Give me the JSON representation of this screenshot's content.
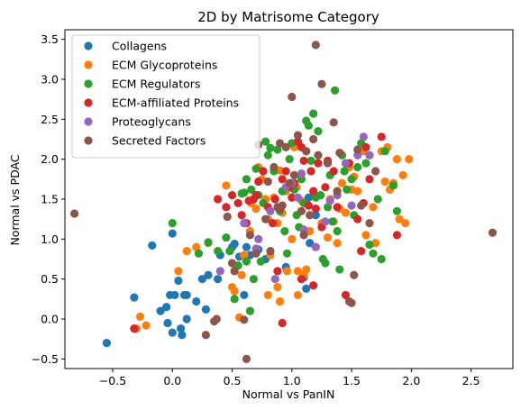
{
  "chart_data": {
    "type": "scatter",
    "title": "2D by Matrisome Category",
    "xlabel": "Normal vs PanIN",
    "ylabel": "Normal vs PDAC",
    "xlim": [
      -0.9,
      2.85
    ],
    "ylim": [
      -0.62,
      3.62
    ],
    "xticks": [
      -0.5,
      0.0,
      0.5,
      1.0,
      1.5,
      2.0,
      2.5
    ],
    "xtick_labels": [
      "−0.5",
      "0.0",
      "0.5",
      "1.0",
      "1.5",
      "2.0",
      "2.5"
    ],
    "yticks": [
      -0.5,
      0.0,
      0.5,
      1.0,
      1.5,
      2.0,
      2.5,
      3.0,
      3.5
    ],
    "ytick_labels": [
      "−0.5",
      "0.0",
      "0.5",
      "1.0",
      "1.5",
      "2.0",
      "2.5",
      "3.0",
      "3.5"
    ],
    "grid": false,
    "legend_position": "top-left",
    "series": [
      {
        "name": "Collagens",
        "color": "#1f77b4",
        "points": [
          [
            -0.55,
            -0.3
          ],
          [
            -0.32,
            0.27
          ],
          [
            -0.17,
            0.92
          ],
          [
            -0.1,
            0.1
          ],
          [
            -0.05,
            0.15
          ],
          [
            -0.04,
            -0.05
          ],
          [
            -0.02,
            0.3
          ],
          [
            0.0,
            1.07
          ],
          [
            0.0,
            -0.17
          ],
          [
            0.02,
            0.3
          ],
          [
            0.05,
            0.48
          ],
          [
            0.07,
            -0.12
          ],
          [
            0.08,
            -0.2
          ],
          [
            0.1,
            0.3
          ],
          [
            0.12,
            0.3
          ],
          [
            0.12,
            0.0
          ],
          [
            0.2,
            0.22
          ],
          [
            0.25,
            0.5
          ],
          [
            0.28,
            0.12
          ],
          [
            0.3,
            0.55
          ],
          [
            0.38,
            0.5
          ],
          [
            0.4,
            0.8
          ],
          [
            0.5,
            0.9
          ],
          [
            0.52,
            0.94
          ],
          [
            0.56,
            0.78
          ],
          [
            0.6,
            0.3
          ],
          [
            0.62,
            0.9
          ],
          [
            0.65,
            0.8
          ],
          [
            0.72,
            0.87
          ],
          [
            0.78,
            0.75
          ],
          [
            0.95,
            0.65
          ],
          [
            1.12,
            0.38
          ],
          [
            1.1,
            0.52
          ],
          [
            1.15,
            0.95
          ],
          [
            1.2,
            1.3
          ],
          [
            1.14,
            1.52
          ]
        ]
      },
      {
        "name": "ECM Glycoproteins",
        "color": "#ff7f0e",
        "points": [
          [
            -0.3,
            -0.12
          ],
          [
            -0.27,
            0.03
          ],
          [
            -0.22,
            -0.08
          ],
          [
            0.05,
            0.6
          ],
          [
            0.12,
            0.85
          ],
          [
            0.2,
            0.9
          ],
          [
            0.3,
            0.95
          ],
          [
            0.45,
            1.67
          ],
          [
            0.5,
            0.4
          ],
          [
            0.52,
            0.35
          ],
          [
            0.56,
            0.02
          ],
          [
            0.58,
            0.55
          ],
          [
            0.6,
            0.8
          ],
          [
            0.65,
            1.1
          ],
          [
            0.66,
            1.45
          ],
          [
            0.7,
            1.38
          ],
          [
            0.72,
            1.9
          ],
          [
            0.75,
            1.75
          ],
          [
            0.78,
            1.5
          ],
          [
            0.8,
            1.25
          ],
          [
            0.82,
            0.8
          ],
          [
            0.85,
            1.52
          ],
          [
            0.88,
            1.2
          ],
          [
            0.9,
            1.86
          ],
          [
            0.92,
            1.33
          ],
          [
            0.95,
            1.6
          ],
          [
            0.96,
            0.6
          ],
          [
            1.0,
            1.0
          ],
          [
            1.02,
            2.15
          ],
          [
            1.04,
            1.65
          ],
          [
            1.05,
            0.6
          ],
          [
            1.08,
            1.48
          ],
          [
            1.1,
            0.55
          ],
          [
            1.12,
            0.62
          ],
          [
            1.15,
            1.1
          ],
          [
            1.2,
            0.9
          ],
          [
            1.25,
            1.2
          ],
          [
            1.3,
            1.02
          ],
          [
            1.32,
            1.5
          ],
          [
            1.35,
            1.22
          ],
          [
            1.38,
            0.95
          ],
          [
            1.4,
            1.38
          ],
          [
            1.42,
            1.7
          ],
          [
            1.45,
            1.33
          ],
          [
            1.48,
            1.9
          ],
          [
            1.5,
            1.62
          ],
          [
            1.52,
            1.78
          ],
          [
            1.55,
            1.6
          ],
          [
            1.6,
            2.1
          ],
          [
            1.62,
            1.05
          ],
          [
            1.65,
            2.05
          ],
          [
            1.7,
            0.95
          ],
          [
            1.75,
            2.1
          ],
          [
            1.78,
            1.72
          ],
          [
            1.82,
            1.62
          ],
          [
            1.85,
            1.7
          ],
          [
            1.88,
            2.0
          ],
          [
            1.9,
            1.25
          ],
          [
            1.93,
            1.8
          ],
          [
            1.95,
            1.2
          ],
          [
            1.98,
            2.0
          ],
          [
            1.8,
            2.15
          ],
          [
            1.68,
            1.4
          ],
          [
            0.88,
            0.4
          ],
          [
            0.9,
            0.22
          ],
          [
            1.05,
            0.3
          ],
          [
            0.8,
            0.3
          ]
        ]
      },
      {
        "name": "ECM Regulators",
        "color": "#2ca02c",
        "points": [
          [
            0.0,
            1.2
          ],
          [
            0.22,
            0.82
          ],
          [
            0.3,
            0.96
          ],
          [
            0.38,
            0.85
          ],
          [
            0.45,
            1.02
          ],
          [
            0.48,
            0.85
          ],
          [
            0.52,
            0.25
          ],
          [
            0.55,
            0.67
          ],
          [
            0.58,
            1.57
          ],
          [
            0.6,
            1.58
          ],
          [
            0.62,
            1.75
          ],
          [
            0.65,
            0.1
          ],
          [
            0.66,
            1.62
          ],
          [
            0.7,
            1.88
          ],
          [
            0.72,
            1.55
          ],
          [
            0.74,
            0.72
          ],
          [
            0.76,
            1.45
          ],
          [
            0.78,
            2.22
          ],
          [
            0.8,
            2.05
          ],
          [
            0.82,
            2.14
          ],
          [
            0.85,
            1.85
          ],
          [
            0.88,
            2.12
          ],
          [
            0.9,
            1.35
          ],
          [
            0.92,
            1.6
          ],
          [
            0.94,
            1.1
          ],
          [
            0.96,
            0.82
          ],
          [
            0.98,
            2.0
          ],
          [
            1.0,
            2.2
          ],
          [
            1.02,
            1.62
          ],
          [
            1.04,
            1.3
          ],
          [
            1.06,
            1.15
          ],
          [
            1.08,
            1.75
          ],
          [
            1.1,
            1.45
          ],
          [
            1.12,
            2.48
          ],
          [
            1.14,
            2.42
          ],
          [
            1.16,
            1.98
          ],
          [
            1.18,
            2.57
          ],
          [
            1.2,
            1.52
          ],
          [
            1.22,
            2.35
          ],
          [
            1.24,
            1.55
          ],
          [
            1.26,
            0.75
          ],
          [
            1.28,
            0.7
          ],
          [
            1.3,
            1.4
          ],
          [
            1.32,
            1.8
          ],
          [
            1.34,
            1.22
          ],
          [
            1.36,
            2.86
          ],
          [
            1.38,
            1.1
          ],
          [
            1.4,
            0.62
          ],
          [
            1.42,
            2.05
          ],
          [
            1.44,
            1.85
          ],
          [
            1.46,
            1.62
          ],
          [
            1.5,
            1.75
          ],
          [
            1.52,
            1.3
          ],
          [
            1.55,
            1.9
          ],
          [
            1.58,
            2.2
          ],
          [
            1.62,
            1.95
          ],
          [
            1.65,
            0.93
          ],
          [
            1.68,
            0.82
          ],
          [
            1.72,
            1.5
          ],
          [
            1.75,
            0.75
          ],
          [
            1.78,
            2.1
          ],
          [
            1.85,
            1.67
          ],
          [
            1.88,
            1.35
          ],
          [
            0.68,
            0.5
          ],
          [
            0.62,
            0.72
          ]
        ]
      },
      {
        "name": "ECM-affiliated Proteins",
        "color": "#d62728",
        "points": [
          [
            -0.32,
            -0.12
          ],
          [
            0.38,
            1.5
          ],
          [
            0.45,
            1.4
          ],
          [
            0.5,
            1.55
          ],
          [
            0.55,
            1.45
          ],
          [
            0.58,
            1.3
          ],
          [
            0.62,
            1.2
          ],
          [
            0.64,
            1.48
          ],
          [
            0.68,
            1.5
          ],
          [
            0.7,
            1.55
          ],
          [
            0.72,
            1.72
          ],
          [
            0.76,
            1.85
          ],
          [
            0.8,
            1.4
          ],
          [
            0.84,
            1.2
          ],
          [
            0.86,
            1.5
          ],
          [
            0.9,
            1.38
          ],
          [
            0.92,
            1.75
          ],
          [
            0.95,
            1.85
          ],
          [
            0.98,
            1.65
          ],
          [
            1.0,
            1.52
          ],
          [
            1.02,
            1.7
          ],
          [
            1.05,
            2.22
          ],
          [
            1.08,
            2.15
          ],
          [
            1.1,
            1.98
          ],
          [
            1.12,
            2.1
          ],
          [
            1.14,
            1.42
          ],
          [
            1.16,
            1.85
          ],
          [
            1.18,
            1.6
          ],
          [
            1.2,
            1.38
          ],
          [
            1.22,
            1.95
          ],
          [
            1.25,
            1.15
          ],
          [
            1.28,
            1.65
          ],
          [
            1.3,
            1.98
          ],
          [
            1.35,
            1.85
          ],
          [
            1.38,
            1.4
          ],
          [
            1.45,
            0.3
          ],
          [
            1.48,
            1.95
          ],
          [
            1.55,
            1.25
          ],
          [
            1.58,
            0.85
          ],
          [
            1.6,
            1.45
          ],
          [
            1.62,
            2.15
          ],
          [
            1.65,
            1.75
          ],
          [
            1.75,
            2.28
          ],
          [
            1.88,
            1.05
          ],
          [
            0.88,
            0.6
          ],
          [
            0.92,
            -0.05
          ],
          [
            1.08,
            0.5
          ],
          [
            1.18,
            0.42
          ]
        ]
      },
      {
        "name": "Proteoglycans",
        "color": "#9467bd",
        "points": [
          [
            0.4,
            0.6
          ],
          [
            0.6,
            1.2
          ],
          [
            0.72,
            1.0
          ],
          [
            0.82,
            1.35
          ],
          [
            0.86,
            0.5
          ],
          [
            0.95,
            1.65
          ],
          [
            1.0,
            1.7
          ],
          [
            1.05,
            1.52
          ],
          [
            1.08,
            1.82
          ],
          [
            1.1,
            1.12
          ],
          [
            1.2,
            0.9
          ],
          [
            1.28,
            1.22
          ],
          [
            1.32,
            1.48
          ],
          [
            1.38,
            1.55
          ],
          [
            1.45,
            1.95
          ],
          [
            1.55,
            2.05
          ],
          [
            1.6,
            2.28
          ],
          [
            1.65,
            2.05
          ],
          [
            0.7,
            0.88
          ],
          [
            1.5,
            1.42
          ]
        ]
      },
      {
        "name": "Secreted Factors",
        "color": "#8c564b",
        "points": [
          [
            -0.82,
            1.32
          ],
          [
            0.28,
            -0.2
          ],
          [
            0.35,
            -0.03
          ],
          [
            0.37,
            0.0
          ],
          [
            0.46,
            1.28
          ],
          [
            0.5,
            0.7
          ],
          [
            0.52,
            0.6
          ],
          [
            0.6,
            -0.01
          ],
          [
            0.62,
            -0.5
          ],
          [
            0.65,
            1.05
          ],
          [
            0.7,
            0.82
          ],
          [
            0.72,
            2.18
          ],
          [
            0.78,
            1.25
          ],
          [
            0.8,
            1.72
          ],
          [
            0.85,
            1.9
          ],
          [
            0.88,
            1.4
          ],
          [
            0.9,
            2.2
          ],
          [
            0.92,
            1.42
          ],
          [
            0.95,
            2.15
          ],
          [
            0.98,
            1.7
          ],
          [
            1.0,
            2.78
          ],
          [
            1.02,
            1.8
          ],
          [
            1.05,
            2.3
          ],
          [
            1.08,
            1.35
          ],
          [
            1.1,
            1.05
          ],
          [
            1.12,
            2.1
          ],
          [
            1.15,
            1.3
          ],
          [
            1.18,
            2.25
          ],
          [
            1.2,
            3.43
          ],
          [
            1.22,
            2.05
          ],
          [
            1.25,
            2.94
          ],
          [
            1.3,
            1.95
          ],
          [
            1.35,
            2.46
          ],
          [
            1.38,
            1.6
          ],
          [
            1.4,
            2.08
          ],
          [
            1.48,
            0.22
          ],
          [
            1.5,
            0.2
          ],
          [
            1.52,
            0.55
          ],
          [
            1.55,
            2.12
          ],
          [
            1.58,
            1.42
          ],
          [
            1.65,
            1.2
          ],
          [
            1.7,
            1.85
          ],
          [
            2.68,
            1.08
          ],
          [
            0.82,
            0.85
          ]
        ]
      }
    ]
  }
}
